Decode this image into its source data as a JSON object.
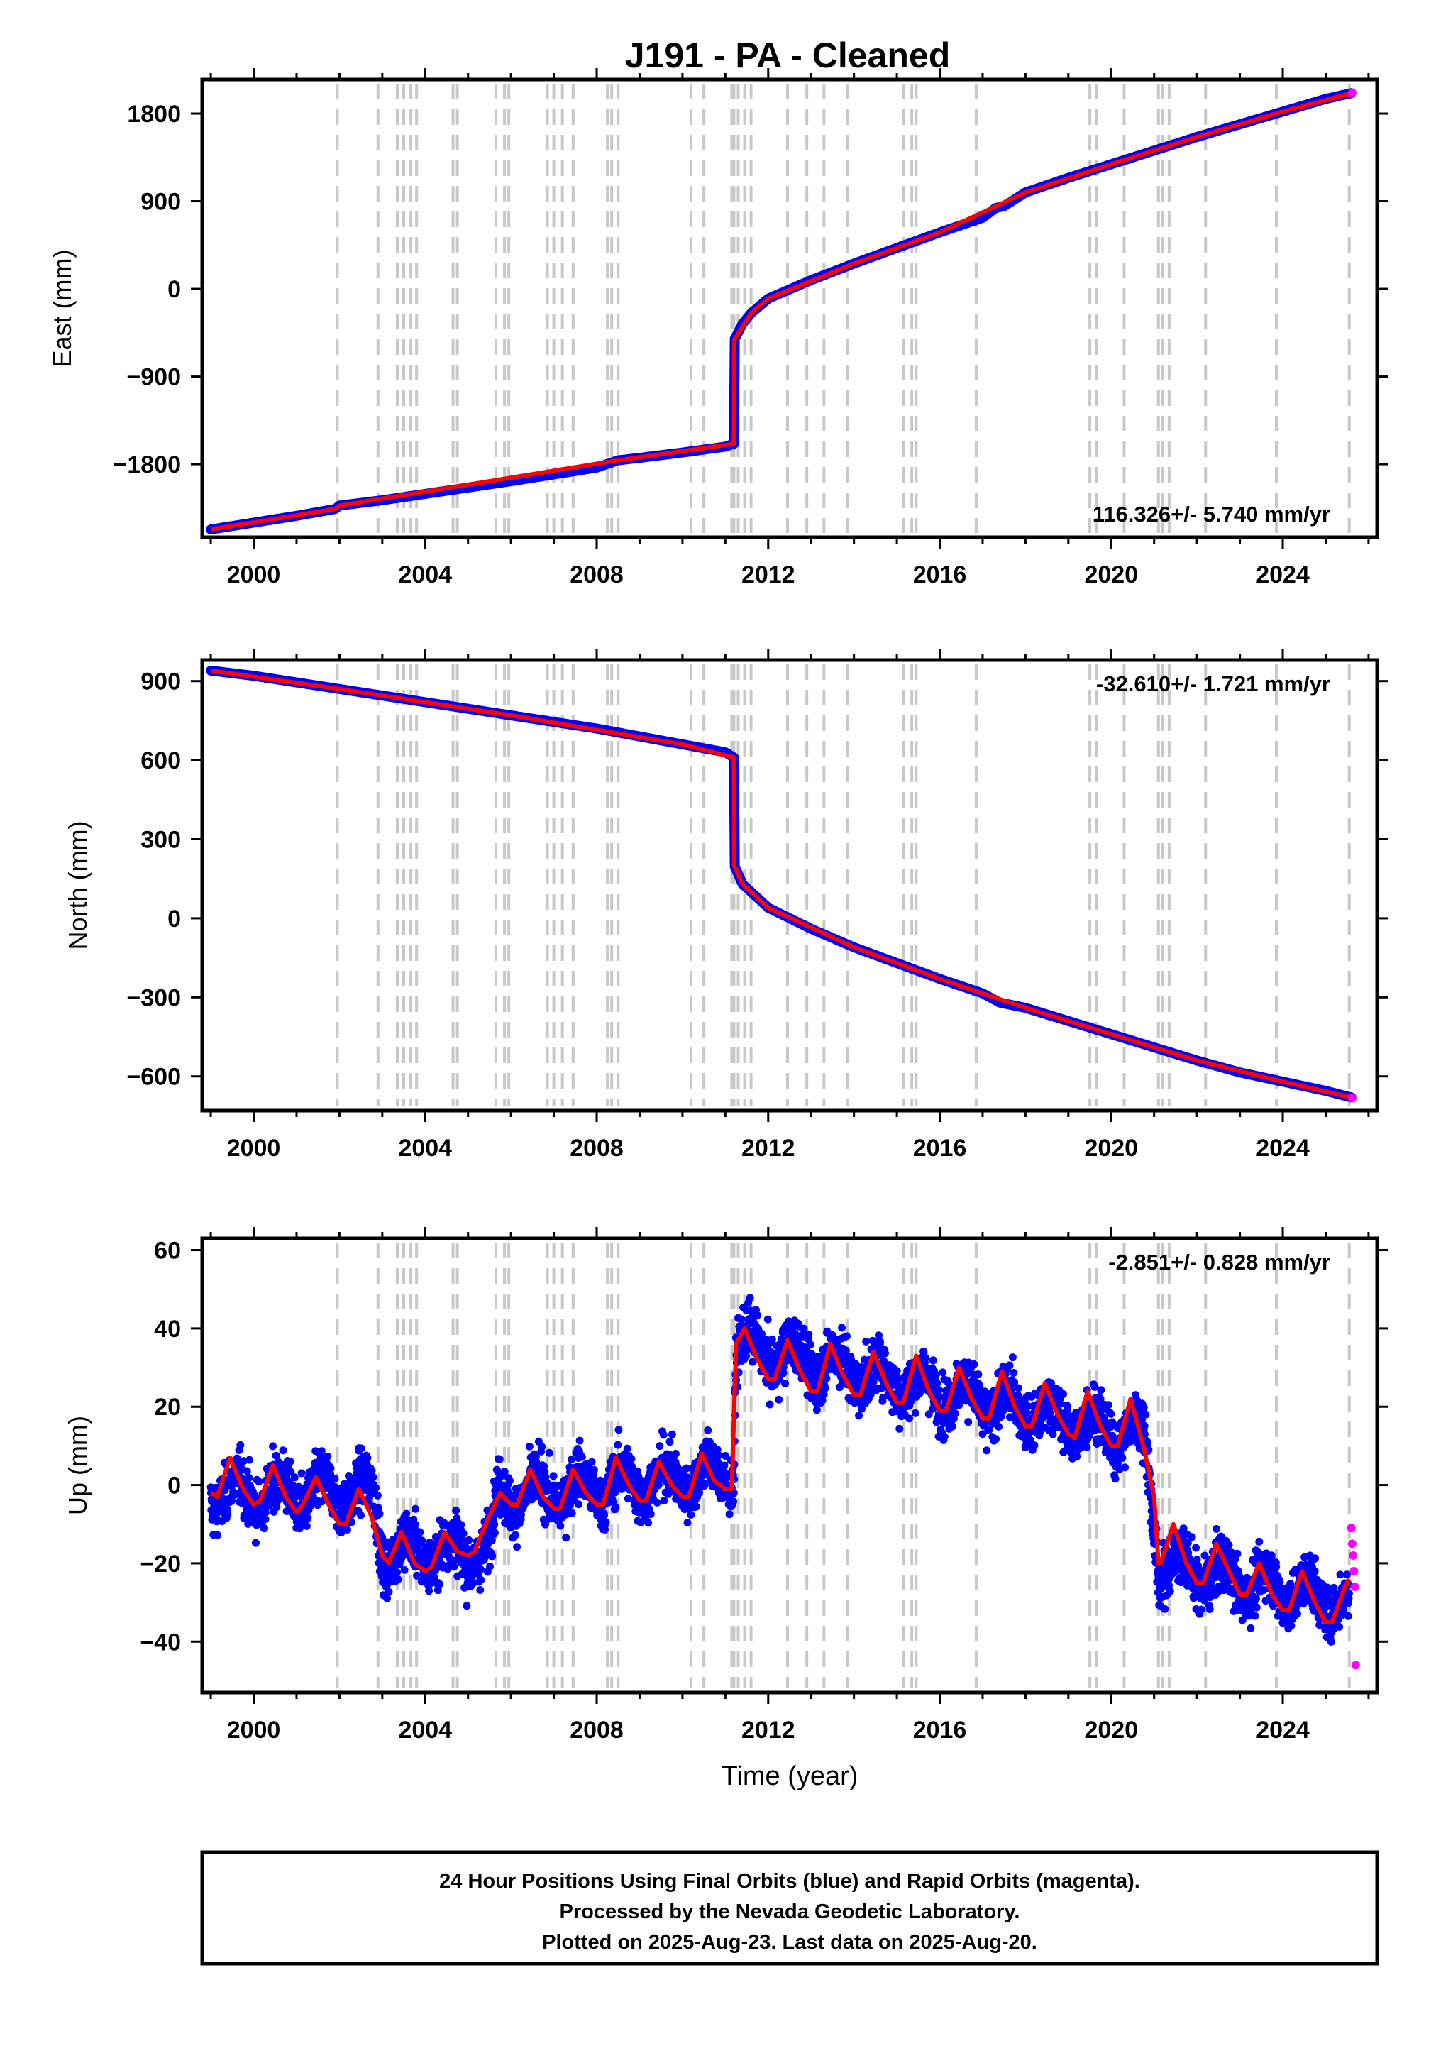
{
  "chart_data": {
    "type": "scatter",
    "title": "J191  - PA - Cleaned",
    "xlabel": "Time (year)",
    "xlim": [
      1998.8,
      2026.2
    ],
    "x_ticks": [
      "2000",
      "2004",
      "2008",
      "2012",
      "2016",
      "2020",
      "2024"
    ],
    "x_tick_values": [
      2000,
      2004,
      2008,
      2012,
      2016,
      2020,
      2024
    ],
    "event_lines": [
      2001.95,
      2002.9,
      2003.35,
      2003.5,
      2003.65,
      2003.8,
      2004.65,
      2004.75,
      2005.65,
      2005.85,
      2005.95,
      2006.85,
      2007.0,
      2007.2,
      2007.45,
      2008.25,
      2008.35,
      2008.5,
      2010.2,
      2010.5,
      2011.15,
      2011.2,
      2011.3,
      2011.45,
      2011.6,
      2012.45,
      2012.9,
      2013.3,
      2013.85,
      2015.15,
      2015.35,
      2015.45,
      2016.85,
      2019.5,
      2019.65,
      2020.3,
      2021.1,
      2021.2,
      2021.35,
      2022.2,
      2023.85,
      2025.55
    ],
    "colors": {
      "final_orbits": "#0000ff",
      "rapid_orbits": "#ff00ff",
      "model": "#ff0000",
      "event_lines": "#c8c8c8"
    },
    "grid": false,
    "panels": [
      {
        "ylabel": "East (mm)",
        "ylim": [
          -2550,
          2150
        ],
        "y_ticks": [
          "1800",
          "900",
          "0",
          "−900",
          "−1800"
        ],
        "y_tick_values": [
          1800,
          900,
          0,
          -900,
          -1800
        ],
        "rate_label": "116.326+/- 5.740 mm/yr",
        "rate_position": "bottom-right",
        "series": [
          {
            "name": "Final Orbits",
            "x": [
              1999.0,
              2000.0,
              2001.0,
              2001.9,
              2002.0,
              2003.0,
              2004.0,
              2005.0,
              2006.0,
              2007.0,
              2008.0,
              2008.5,
              2009.0,
              2010.0,
              2011.0,
              2011.2,
              2011.21,
              2011.4,
              2011.6,
              2012.0,
              2013.0,
              2014.0,
              2015.0,
              2016.0,
              2017.0,
              2017.3,
              2017.5,
              2018.0,
              2019.0,
              2020.0,
              2021.0,
              2022.0,
              2023.0,
              2024.0,
              2025.0,
              2025.6
            ],
            "y": [
              -2470,
              -2400,
              -2330,
              -2260,
              -2225,
              -2170,
              -2105,
              -2040,
              -1975,
              -1905,
              -1835,
              -1760,
              -1735,
              -1680,
              -1620,
              -1590,
              -520,
              -360,
              -250,
              -100,
              90,
              260,
              420,
              580,
              730,
              830,
              850,
              990,
              1140,
              1280,
              1420,
              1560,
              1690,
              1820,
              1950,
              2010
            ]
          },
          {
            "name": "Rapid Orbits",
            "x": [
              2025.62
            ],
            "y": [
              2015
            ]
          },
          {
            "name": "Model",
            "x": [
              1999.0,
              2001.9,
              2002.0,
              2008.5,
              2011.2,
              2011.21,
              2011.6,
              2012.0,
              2014.0,
              2016.0,
              2018.0,
              2020.0,
              2022.0,
              2024.0,
              2025.6
            ],
            "y": [
              -2470,
              -2260,
              -2225,
              -1760,
              -1590,
              -520,
              -250,
              -100,
              260,
              580,
              990,
              1280,
              1560,
              1820,
              2010
            ]
          }
        ]
      },
      {
        "ylabel": "North (mm)",
        "ylim": [
          -730,
          980
        ],
        "y_ticks": [
          "900",
          "600",
          "300",
          "0",
          "−300",
          "−600"
        ],
        "y_tick_values": [
          900,
          600,
          300,
          0,
          -300,
          -600
        ],
        "rate_label": "-32.610+/- 1.721 mm/yr",
        "rate_position": "top-right",
        "series": [
          {
            "name": "Final Orbits",
            "x": [
              1999.0,
              2000.0,
              2001.0,
              2002.0,
              2003.0,
              2004.0,
              2005.0,
              2006.0,
              2007.0,
              2008.0,
              2009.0,
              2010.0,
              2011.0,
              2011.2,
              2011.21,
              2011.4,
              2012.0,
              2013.0,
              2014.0,
              2015.0,
              2016.0,
              2017.0,
              2017.4,
              2018.0,
              2019.0,
              2020.0,
              2021.0,
              2022.0,
              2023.0,
              2024.0,
              2025.0,
              2025.6
            ],
            "y": [
              940,
              920,
              895,
              870,
              845,
              820,
              795,
              770,
              745,
              720,
              690,
              660,
              630,
              610,
              200,
              130,
              40,
              -40,
              -110,
              -170,
              -230,
              -285,
              -320,
              -340,
              -390,
              -440,
              -490,
              -540,
              -585,
              -620,
              -655,
              -680
            ]
          },
          {
            "name": "Rapid Orbits",
            "x": [
              2025.62
            ],
            "y": [
              -683
            ]
          },
          {
            "name": "Model",
            "x": [
              1999.0,
              2002.0,
              2006.0,
              2010.0,
              2011.2,
              2011.21,
              2011.4,
              2012.0,
              2014.0,
              2016.0,
              2018.0,
              2020.0,
              2022.0,
              2024.0,
              2025.6
            ],
            "y": [
              940,
              870,
              770,
              660,
              610,
              200,
              130,
              40,
              -110,
              -230,
              -340,
              -440,
              -540,
              -620,
              -680
            ]
          }
        ]
      },
      {
        "ylabel": "Up (mm)",
        "ylim": [
          -53,
          63
        ],
        "y_ticks": [
          "60",
          "40",
          "20",
          "0",
          "−20",
          "−40"
        ],
        "y_tick_values": [
          60,
          40,
          20,
          0,
          -20,
          -40
        ],
        "rate_label": "-2.851+/- 0.828 mm/yr",
        "rate_position": "top-right",
        "scatter_spread_mm": 9,
        "series": [
          {
            "name": "Final Orbits (trend)",
            "x": [
              1999.0,
              2002.8,
              2003.0,
              2005.5,
              2005.7,
              2011.2,
              2011.25,
              2020.8,
              2021.1,
              2025.55
            ],
            "y": [
              -2,
              -2,
              -17,
              -17,
              -3,
              3,
              36,
              12,
              -20,
              -30
            ]
          },
          {
            "name": "Rapid Orbits",
            "x": [
              2025.6,
              2025.62,
              2025.64,
              2025.66,
              2025.68,
              2025.7
            ],
            "y": [
              -11,
              -15,
              -18,
              -22,
              -26,
              -46
            ]
          },
          {
            "name": "Model",
            "x": [
              1999.0,
              1999.15,
              1999.45,
              1999.75,
              2000.0,
              2000.15,
              2000.45,
              2000.75,
              2001.0,
              2001.15,
              2001.45,
              2001.75,
              2002.0,
              2002.15,
              2002.45,
              2002.75,
              2003.0,
              2003.15,
              2003.45,
              2003.75,
              2004.0,
              2004.15,
              2004.45,
              2004.75,
              2005.0,
              2005.15,
              2005.45,
              2005.75,
              2006.0,
              2006.15,
              2006.45,
              2006.75,
              2007.0,
              2007.15,
              2007.45,
              2007.75,
              2008.0,
              2008.15,
              2008.45,
              2008.75,
              2009.0,
              2009.15,
              2009.45,
              2009.75,
              2010.0,
              2010.15,
              2010.45,
              2010.75,
              2011.0,
              2011.15,
              2011.25,
              2011.45,
              2011.75,
              2012.0,
              2012.15,
              2012.45,
              2012.75,
              2013.0,
              2013.15,
              2013.45,
              2013.75,
              2014.0,
              2014.15,
              2014.45,
              2014.75,
              2015.0,
              2015.15,
              2015.45,
              2015.75,
              2016.0,
              2016.15,
              2016.45,
              2016.75,
              2017.0,
              2017.15,
              2017.45,
              2017.75,
              2018.0,
              2018.15,
              2018.45,
              2018.75,
              2019.0,
              2019.15,
              2019.45,
              2019.75,
              2020.0,
              2020.15,
              2020.45,
              2020.75,
              2021.0,
              2021.1,
              2021.15,
              2021.45,
              2021.75,
              2022.0,
              2022.15,
              2022.45,
              2022.75,
              2023.0,
              2023.15,
              2023.45,
              2023.75,
              2024.0,
              2024.15,
              2024.45,
              2024.75,
              2025.0,
              2025.15,
              2025.45,
              2025.55
            ],
            "y": [
              -2,
              -3,
              7,
              -1,
              -5,
              -4,
              5,
              -3,
              -7,
              -5,
              2,
              -5,
              -10,
              -10,
              -1,
              -8,
              -18,
              -20,
              -12,
              -20,
              -22,
              -21,
              -12,
              -17,
              -18,
              -17,
              -9,
              -2,
              -5,
              -5,
              4,
              -3,
              -6,
              -6,
              4,
              -2,
              -5,
              -5,
              7,
              0,
              -4,
              -4,
              6,
              0,
              -3,
              -3,
              8,
              1,
              -1,
              -1,
              36,
              40,
              32,
              27,
              27,
              37,
              29,
              24,
              24,
              36,
              28,
              23,
              23,
              34,
              26,
              21,
              21,
              33,
              24,
              19,
              19,
              30,
              22,
              17,
              17,
              29,
              20,
              15,
              15,
              26,
              18,
              13,
              12,
              24,
              15,
              10,
              10,
              22,
              10,
              -3,
              -20,
              -20,
              -10,
              -20,
              -25,
              -25,
              -15,
              -22,
              -28,
              -28,
              -20,
              -28,
              -32,
              -32,
              -22,
              -30,
              -35,
              -35,
              -26,
              -24
            ]
          }
        ]
      }
    ]
  },
  "footer": {
    "line1": "24 Hour Positions Using Final Orbits (blue) and Rapid Orbits (magenta).",
    "line2": "Processed by the Nevada Geodetic Laboratory.",
    "line3": "Plotted on 2025-Aug-23. Last data on 2025-Aug-20."
  }
}
